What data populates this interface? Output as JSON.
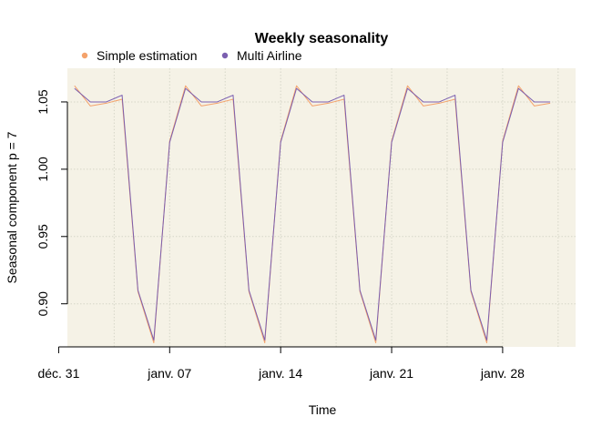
{
  "chart_data": {
    "type": "line",
    "title": "Weekly seasonality",
    "xlabel": "Time",
    "ylabel": "Seasonal component p = 7",
    "x_ticks": [
      "déc. 31",
      "janv. 07",
      "janv. 14",
      "janv. 21",
      "janv. 28"
    ],
    "y_ticks": [
      "0.90",
      "0.95",
      "1.00",
      "1.05"
    ],
    "ylim": [
      0.868,
      1.075
    ],
    "x": [
      "2018-01-01",
      "2018-01-02",
      "2018-01-03",
      "2018-01-04",
      "2018-01-05",
      "2018-01-06",
      "2018-01-07",
      "2018-01-08",
      "2018-01-09",
      "2018-01-10",
      "2018-01-11",
      "2018-01-12",
      "2018-01-13",
      "2018-01-14",
      "2018-01-15",
      "2018-01-16",
      "2018-01-17",
      "2018-01-18",
      "2018-01-19",
      "2018-01-20",
      "2018-01-21",
      "2018-01-22",
      "2018-01-23",
      "2018-01-24",
      "2018-01-25",
      "2018-01-26",
      "2018-01-27",
      "2018-01-28",
      "2018-01-29",
      "2018-01-30",
      "2018-01-31"
    ],
    "grid": true,
    "legend_position": "top-left",
    "series": [
      {
        "name": "Simple estimation",
        "color": "#f4a26b",
        "values": [
          1.062,
          1.047,
          1.049,
          1.052,
          0.909,
          0.871,
          1.021,
          1.062,
          1.047,
          1.049,
          1.052,
          0.909,
          0.871,
          1.021,
          1.062,
          1.047,
          1.049,
          1.052,
          0.909,
          0.871,
          1.021,
          1.062,
          1.047,
          1.049,
          1.052,
          0.909,
          0.871,
          1.021,
          1.062,
          1.047,
          1.049
        ]
      },
      {
        "name": "Multi Airline",
        "color": "#7b5fb0",
        "values": [
          1.06,
          1.05,
          1.05,
          1.055,
          0.91,
          0.873,
          1.02,
          1.06,
          1.05,
          1.05,
          1.055,
          0.91,
          0.873,
          1.02,
          1.06,
          1.05,
          1.05,
          1.055,
          0.91,
          0.873,
          1.02,
          1.06,
          1.05,
          1.05,
          1.055,
          0.91,
          0.873,
          1.02,
          1.06,
          1.05,
          1.05
        ]
      }
    ]
  }
}
